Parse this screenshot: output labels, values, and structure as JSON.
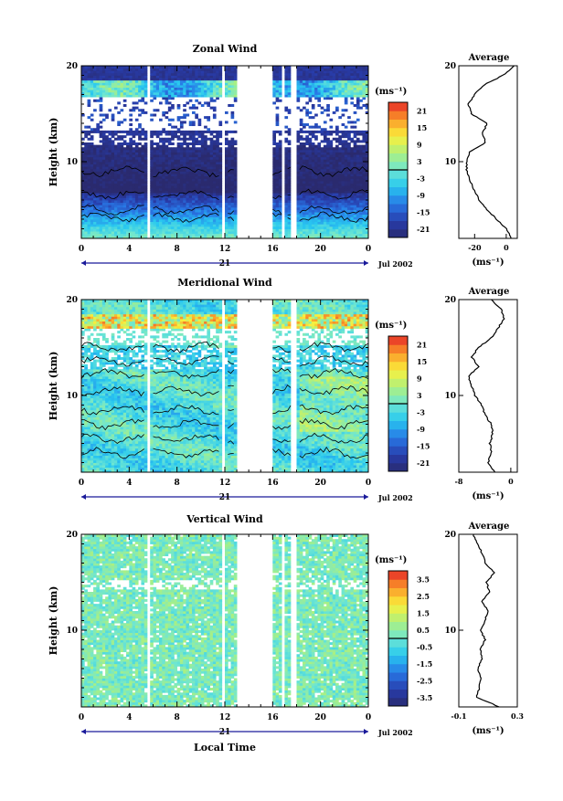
{
  "chart_data": [
    {
      "type": "heatmap",
      "title": "Zonal Wind",
      "ylabel": "Height (km)",
      "xlabel": "",
      "x_ticks": [
        "0",
        "4",
        "8",
        "12",
        "16",
        "20",
        "0"
      ],
      "y_ticks": [
        "20",
        "10"
      ],
      "xlim": [
        0,
        24
      ],
      "ylim": [
        2,
        20
      ],
      "date_label": "21",
      "month_label": "Jul 2002",
      "colorbar": {
        "unit": "(ms⁻¹)",
        "ticks": [
          "21",
          "15",
          "9",
          "3",
          "-3",
          "-9",
          "-15",
          "-21"
        ],
        "range": [
          -24,
          24
        ]
      },
      "profile": {
        "title": "Average",
        "x_ticks": [
          "-20",
          "0"
        ],
        "y_ticks": [
          "20",
          "10"
        ],
        "xlabel": "(ms⁻¹)",
        "xlim": [
          -30,
          7
        ],
        "height": [
          2,
          3,
          4,
          5,
          6,
          7,
          8,
          9,
          10,
          11,
          12,
          13,
          14,
          15,
          16,
          17,
          18,
          19,
          20
        ],
        "value": [
          3,
          0,
          -6,
          -12,
          -17,
          -20,
          -23,
          -25,
          -25,
          -23,
          -13,
          -15,
          -12,
          -22,
          -24,
          -20,
          -14,
          -2,
          5
        ]
      }
    },
    {
      "type": "heatmap",
      "title": "Meridional Wind",
      "ylabel": "Height (km)",
      "xlabel": "",
      "x_ticks": [
        "0",
        "4",
        "8",
        "12",
        "16",
        "20",
        "0"
      ],
      "y_ticks": [
        "20",
        "10"
      ],
      "xlim": [
        0,
        24
      ],
      "ylim": [
        2,
        20
      ],
      "date_label": "21",
      "month_label": "Jul 2002",
      "colorbar": {
        "unit": "(ms⁻¹)",
        "ticks": [
          "21",
          "15",
          "9",
          "3",
          "-3",
          "-9",
          "-15",
          "-21"
        ],
        "range": [
          -24,
          24
        ]
      },
      "profile": {
        "title": "Average",
        "x_ticks": [
          "-8",
          "0"
        ],
        "y_ticks": [
          "20",
          "10"
        ],
        "xlabel": "(ms⁻¹)",
        "xlim": [
          -8,
          1
        ],
        "height": [
          2,
          3,
          4,
          5,
          6,
          7,
          8,
          9,
          10,
          11,
          12,
          13,
          14,
          15,
          16,
          17,
          18,
          19,
          20
        ],
        "value": [
          -2.5,
          -3.5,
          -3,
          -3.2,
          -2.8,
          -3,
          -4,
          -4.5,
          -5.5,
          -6,
          -6.5,
          -5,
          -6,
          -5,
          -3,
          -2,
          -1,
          -1.5,
          -3
        ]
      }
    },
    {
      "type": "heatmap",
      "title": "Vertical Wind",
      "ylabel": "Height (km)",
      "xlabel": "Local Time",
      "x_ticks": [
        "0",
        "4",
        "8",
        "12",
        "16",
        "20",
        "0"
      ],
      "y_ticks": [
        "20",
        "10"
      ],
      "xlim": [
        0,
        24
      ],
      "ylim": [
        2,
        20
      ],
      "date_label": "21",
      "month_label": "Jul 2002",
      "colorbar": {
        "unit": "(ms⁻¹)",
        "ticks": [
          "3.5",
          "2.5",
          "1.5",
          "0.5",
          "-0.5",
          "-1.5",
          "-2.5",
          "-3.5"
        ],
        "range": [
          -4,
          4
        ]
      },
      "profile": {
        "title": "Average",
        "x_ticks": [
          "-0.1",
          "0.3"
        ],
        "y_ticks": [
          "20",
          "10"
        ],
        "xlabel": "(ms⁻¹)",
        "xlim": [
          -0.1,
          0.3
        ],
        "height": [
          2,
          3,
          4,
          5,
          6,
          7,
          8,
          9,
          10,
          11,
          12,
          13,
          14,
          15,
          16,
          17,
          18,
          19,
          20
        ],
        "value": [
          0.18,
          0.02,
          0.04,
          0.05,
          0.03,
          0.06,
          0.05,
          0.08,
          0.05,
          0.08,
          0.1,
          0.06,
          0.11,
          0.09,
          0.14,
          0.08,
          0.06,
          0.03,
          0.0
        ]
      }
    }
  ]
}
